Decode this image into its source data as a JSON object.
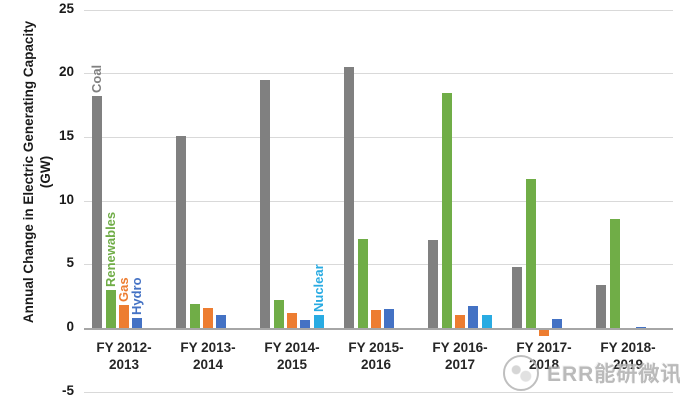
{
  "chart_data": {
    "type": "bar",
    "title": "",
    "ylabel": "Annual Change in Electric Generating Capacity (GW)",
    "xlabel": "",
    "ylim": [
      -5,
      25
    ],
    "yticks": [
      25,
      20,
      15,
      10,
      5,
      0,
      -5
    ],
    "grid": true,
    "legend_position": "inline-labels-on-plot",
    "categories": [
      "FY 2012-2013",
      "FY 2013-2014",
      "FY 2014-2015",
      "FY 2015-2016",
      "FY 2016-2017",
      "FY 2017-2018",
      "FY 2018-2019"
    ],
    "series": [
      {
        "name": "Coal",
        "color": "#808080",
        "values": [
          18.2,
          15.1,
          19.5,
          20.5,
          6.9,
          4.8,
          3.4
        ]
      },
      {
        "name": "Renewables",
        "color": "#70ad47",
        "values": [
          3.0,
          1.9,
          2.2,
          7.0,
          18.5,
          11.7,
          8.6
        ]
      },
      {
        "name": "Gas",
        "color": "#ed7d31",
        "values": [
          1.8,
          1.6,
          1.2,
          1.4,
          1.0,
          -0.5,
          0
        ]
      },
      {
        "name": "Hydro",
        "color": "#4472c4",
        "values": [
          0.8,
          1.0,
          0.6,
          1.5,
          1.7,
          0.7,
          0.1
        ]
      },
      {
        "name": "Nuclear",
        "color": "#29abe2",
        "values": [
          0,
          0,
          1.0,
          0,
          1.0,
          0,
          0
        ]
      }
    ],
    "inline_labels": [
      {
        "text": "Coal",
        "series": 0,
        "group": 0
      },
      {
        "text": "Renewables",
        "series": 1,
        "group": 0
      },
      {
        "text": "Gas",
        "series": 2,
        "group": 0
      },
      {
        "text": "Hydro",
        "series": 3,
        "group": 0
      },
      {
        "text": "Nuclear",
        "series": 4,
        "group": 2
      }
    ],
    "colors": {
      "gridline": "#d9d9d9",
      "zero_axis": "#a6a6a6",
      "text": "#1a1a1a"
    }
  },
  "watermark": {
    "text": "ERR能研微讯"
  }
}
